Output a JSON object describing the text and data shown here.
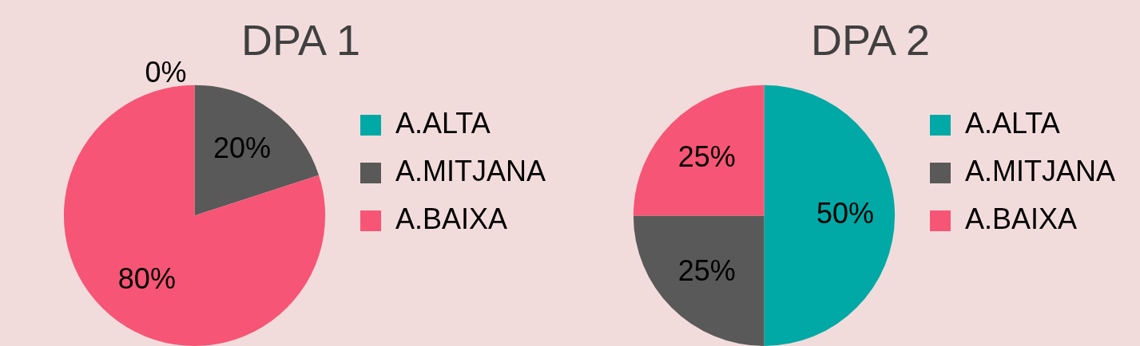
{
  "chart_data": [
    {
      "type": "pie",
      "title": "DPA 1",
      "categories": [
        "A.ALTA",
        "A.MITJANA",
        "A.BAIXA"
      ],
      "values": [
        0,
        20,
        80
      ],
      "value_labels": [
        "0%",
        "20%",
        "80%"
      ],
      "colors": [
        "#00a9a5",
        "#595959",
        "#f75575"
      ],
      "legend": "right"
    },
    {
      "type": "pie",
      "title": "DPA 2",
      "categories": [
        "A.ALTA",
        "A.MITJANA",
        "A.BAIXA"
      ],
      "values": [
        50,
        25,
        25
      ],
      "value_labels": [
        "50%",
        "25%",
        "25%"
      ],
      "colors": [
        "#00a9a5",
        "#595959",
        "#f75575"
      ],
      "legend": "right"
    }
  ]
}
